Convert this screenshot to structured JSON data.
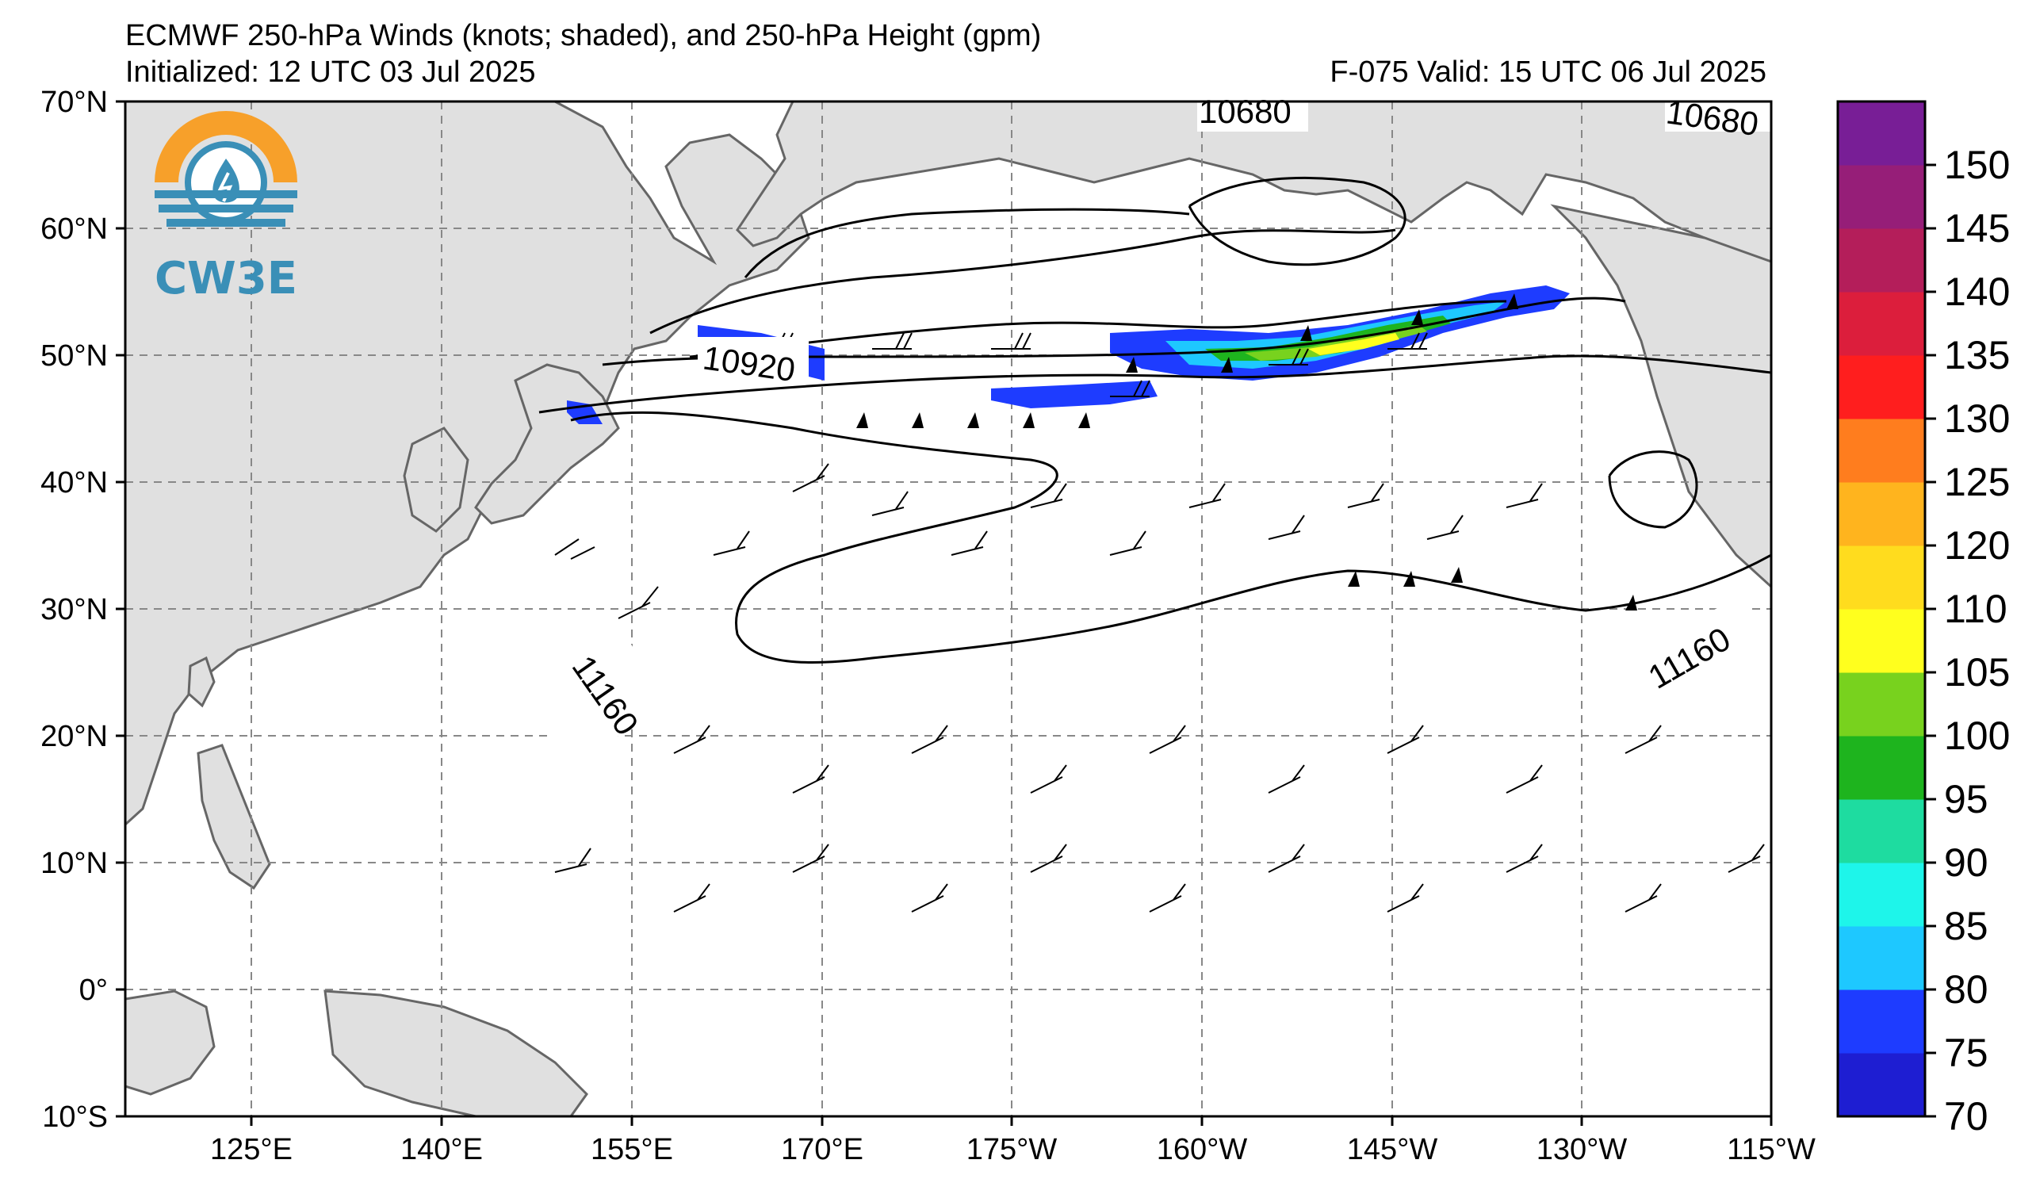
{
  "title": "ECMWF 250-hPa Winds (knots; shaded), and 250-hPa Height (gpm)",
  "initialized": "Initialized: 12 UTC 03 Jul 2025",
  "valid": "F-075  Valid: 15 UTC 06 Jul 2025",
  "logo": {
    "text": "CW3E",
    "ring_color": "#f7a02a",
    "wave_color": "#3a8fb7"
  },
  "map": {
    "lon_labels": [
      "125°E",
      "140°E",
      "155°E",
      "170°E",
      "175°W",
      "160°W",
      "145°W",
      "130°W",
      "115°W"
    ],
    "lat_labels": [
      "70°N",
      "60°N",
      "50°N",
      "40°N",
      "30°N",
      "20°N",
      "10°N",
      "0°",
      "10°S"
    ],
    "contour_labels": [
      "10680",
      "10680",
      "10920",
      "11160",
      "11160"
    ],
    "land_color": "#e0e0e0",
    "coast_color": "#666666",
    "grid_color": "#888888"
  },
  "colorbar": {
    "labels": [
      "70",
      "75",
      "80",
      "85",
      "90",
      "95",
      "100",
      "105",
      "110",
      "120",
      "125",
      "130",
      "135",
      "140",
      "145",
      "150"
    ],
    "colors": [
      "#1e1ed2",
      "#1e3cff",
      "#1ec8ff",
      "#1ef5ea",
      "#1edca0",
      "#1eb41e",
      "#78d21e",
      "#ffff1e",
      "#ffdc1e",
      "#ffb41e",
      "#ff7d1e",
      "#ff1e1e",
      "#dc1e3c",
      "#b41e5a",
      "#961e78",
      "#781e96"
    ]
  }
}
